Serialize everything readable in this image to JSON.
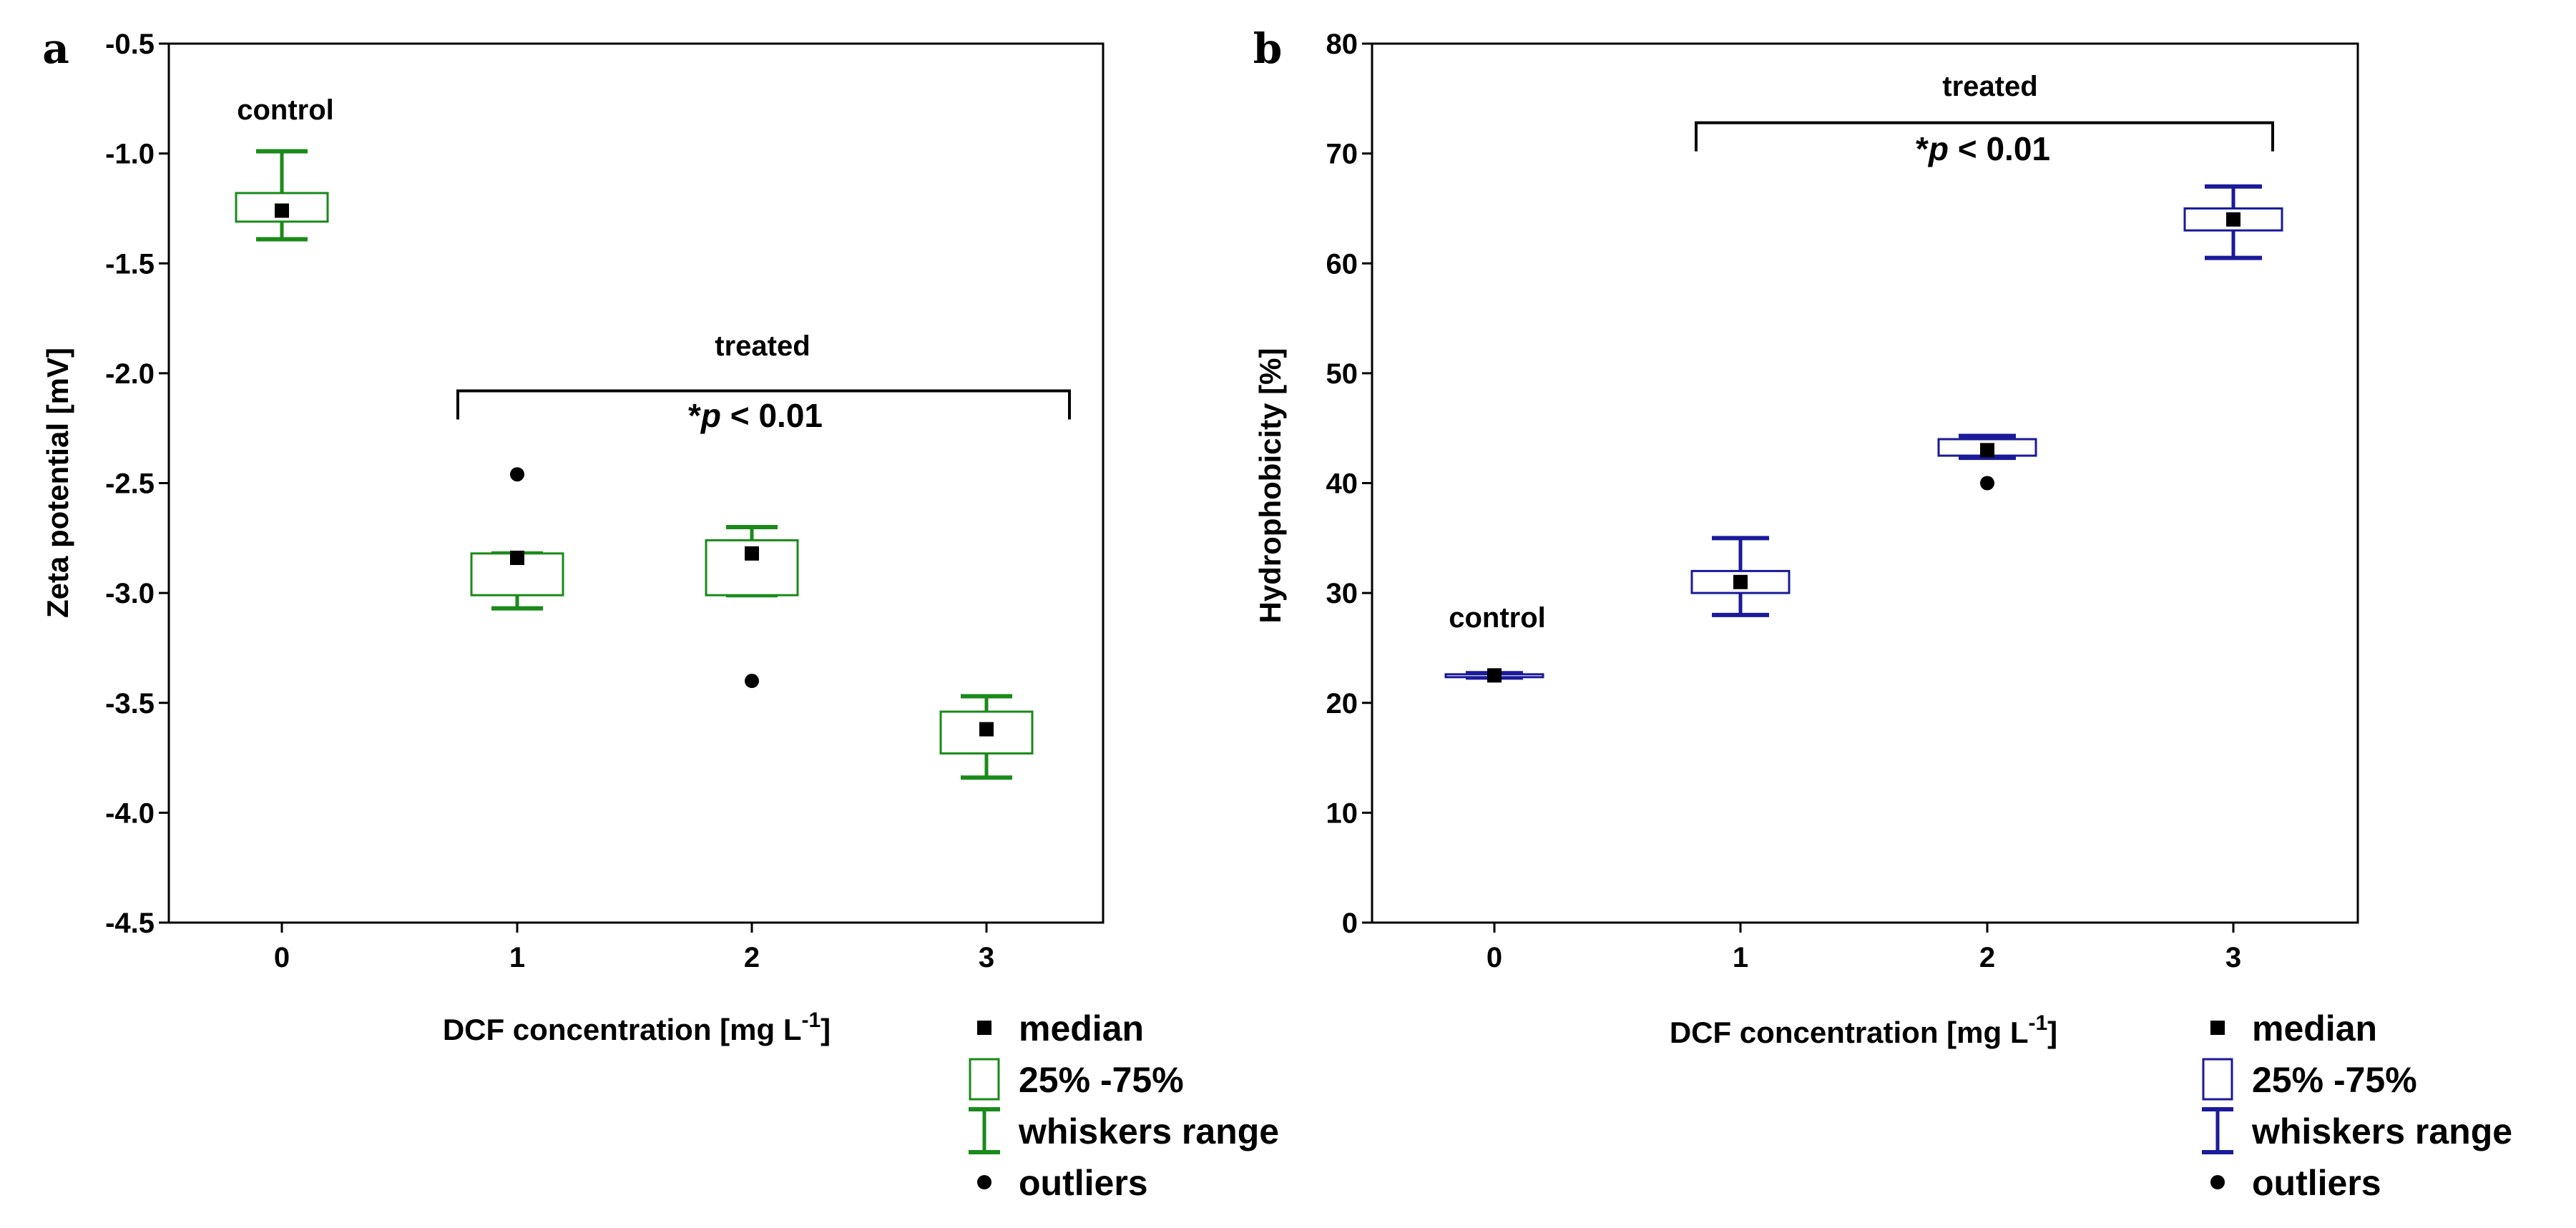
{
  "chart_data": [
    {
      "type": "box",
      "panel_label": "a",
      "color": "#1a8a1a",
      "xlabel_main": "DCF concentration [mg L",
      "xlabel_sup": "-1",
      "xlabel_close": "]",
      "ylabel": "Zeta potential [mV]",
      "ylim": [
        -4.5,
        -0.5
      ],
      "yticks": [
        -0.5,
        -1.0,
        -1.5,
        -2.0,
        -2.5,
        -3.0,
        -3.5,
        -4.0,
        -4.5
      ],
      "ytick_labels": [
        "-0.5",
        "-1.0",
        "-1.5",
        "-2.0",
        "-2.5",
        "-3.0",
        "-3.5",
        "-4.0",
        "-4.5"
      ],
      "categories": [
        "0",
        "1",
        "2",
        "3"
      ],
      "boxes": [
        {
          "x": "0",
          "median": -1.26,
          "q1": -1.31,
          "q3": -1.18,
          "whisker_low": -1.39,
          "whisker_high": -0.99,
          "outliers": []
        },
        {
          "x": "1",
          "median": -2.84,
          "q1": -3.01,
          "q3": -2.82,
          "whisker_low": -3.07,
          "whisker_high": -2.82,
          "outliers": [
            -2.46
          ]
        },
        {
          "x": "2",
          "median": -2.82,
          "q1": -3.01,
          "q3": -2.76,
          "whisker_low": -3.01,
          "whisker_high": -2.7,
          "outliers": [
            -3.4
          ]
        },
        {
          "x": "3",
          "median": -3.62,
          "q1": -3.73,
          "q3": -3.54,
          "whisker_low": -3.84,
          "whisker_high": -3.47,
          "outliers": []
        }
      ],
      "annotations": {
        "control": "control",
        "treated": "treated",
        "p_star": "*",
        "p_italic": "p",
        "p_rest": " < 0.01"
      },
      "bracket": {
        "from": "1",
        "to": "3",
        "y_value": -2.08
      }
    },
    {
      "type": "box",
      "panel_label": "b",
      "color": "#1a1a9a",
      "xlabel_main": "DCF concentration [mg L",
      "xlabel_sup": "-1",
      "xlabel_close": "]",
      "ylabel": "Hydrophobicity [%]",
      "ylim": [
        0,
        80
      ],
      "yticks": [
        0,
        10,
        20,
        30,
        40,
        50,
        60,
        70,
        80
      ],
      "ytick_labels": [
        "0",
        "10",
        "20",
        "30",
        "40",
        "50",
        "60",
        "70",
        "80"
      ],
      "categories": [
        "0",
        "1",
        "2",
        "3"
      ],
      "boxes": [
        {
          "x": "0",
          "median": 22.5,
          "q1": 22.4,
          "q3": 22.6,
          "whisker_low": 22.3,
          "whisker_high": 22.7,
          "outliers": []
        },
        {
          "x": "1",
          "median": 31.0,
          "q1": 30.0,
          "q3": 32.0,
          "whisker_low": 28.0,
          "whisker_high": 35.0,
          "outliers": []
        },
        {
          "x": "2",
          "median": 43.0,
          "q1": 42.5,
          "q3": 44.0,
          "whisker_low": 42.3,
          "whisker_high": 44.3,
          "outliers": [
            40.0
          ]
        },
        {
          "x": "3",
          "median": 64.0,
          "q1": 63.0,
          "q3": 65.0,
          "whisker_low": 60.5,
          "whisker_high": 67.0,
          "outliers": []
        }
      ],
      "annotations": {
        "control": "control",
        "treated": "treated",
        "p_star": "*",
        "p_italic": "p",
        "p_rest": " < 0.01"
      },
      "bracket": {
        "from": "1",
        "to": "3",
        "y_value": 72.8
      }
    }
  ],
  "legend": {
    "median": "median",
    "box": "25% -75%",
    "whiskers": "whiskers range",
    "outliers": "outliers"
  }
}
